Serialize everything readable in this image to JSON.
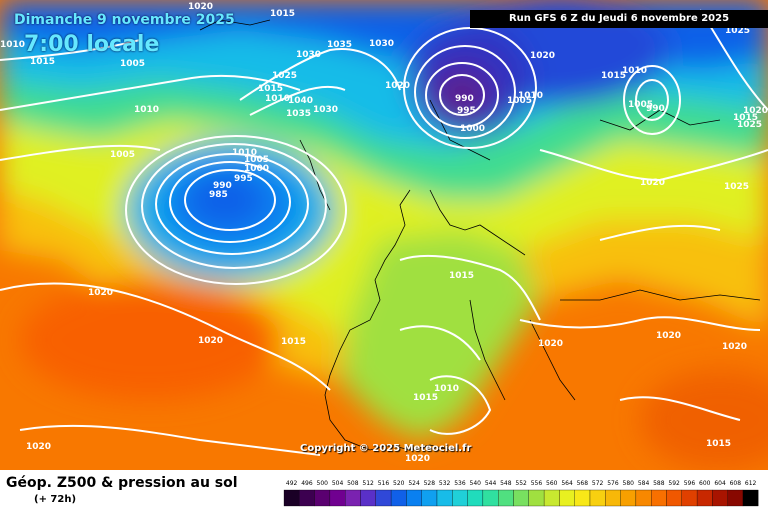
{
  "header": {
    "date_label": "Dimanche 9 novembre 2025",
    "time_label": "7:00 locale",
    "run_label": "Run GFS 6 Z du Jeudi 6 novembre 2025"
  },
  "copyright": "Copyright © 2025 Meteociel.fr",
  "footer": {
    "product_title": "Géop. Z500 & pression au sol",
    "forecast_horizon": "(+ 72h)"
  },
  "legend": {
    "values": [
      "492",
      "496",
      "500",
      "504",
      "508",
      "512",
      "516",
      "520",
      "524",
      "528",
      "532",
      "536",
      "540",
      "544",
      "548",
      "552",
      "556",
      "560",
      "564",
      "568",
      "572",
      "576",
      "580",
      "584",
      "588",
      "592",
      "596",
      "600",
      "604",
      "608",
      "612"
    ],
    "colors": [
      "#1a0026",
      "#3c0050",
      "#5a0070",
      "#700090",
      "#7a22b0",
      "#5a30c8",
      "#3048d8",
      "#1060e8",
      "#0a80f0",
      "#10a0f0",
      "#18bce8",
      "#20d0d8",
      "#20dcbc",
      "#30e0a0",
      "#50e080",
      "#78e060",
      "#a0e040",
      "#c8e830",
      "#e8f020",
      "#f8e818",
      "#f8d010",
      "#f8b808",
      "#f8a000",
      "#f88800",
      "#f87000",
      "#f05800",
      "#e04000",
      "#c82800",
      "#a81400",
      "#880800",
      "#000000"
    ]
  },
  "pressure_labels": [
    "1015",
    "1020",
    "1015",
    "1005",
    "1010",
    "1010",
    "1005",
    "1030",
    "1035",
    "1030",
    "1025",
    "1015",
    "1010",
    "1040",
    "1035",
    "1030",
    "1010",
    "1005",
    "1000",
    "995",
    "990",
    "985",
    "1020",
    "990",
    "995",
    "1000",
    "1005",
    "1010",
    "1020",
    "1015",
    "1010",
    "1005",
    "990",
    "1025",
    "1020",
    "1025",
    "1015",
    "1025",
    "1020",
    "1015",
    "1020",
    "1010",
    "1015",
    "1020",
    "1020",
    "1020",
    "1015",
    "1020"
  ]
}
